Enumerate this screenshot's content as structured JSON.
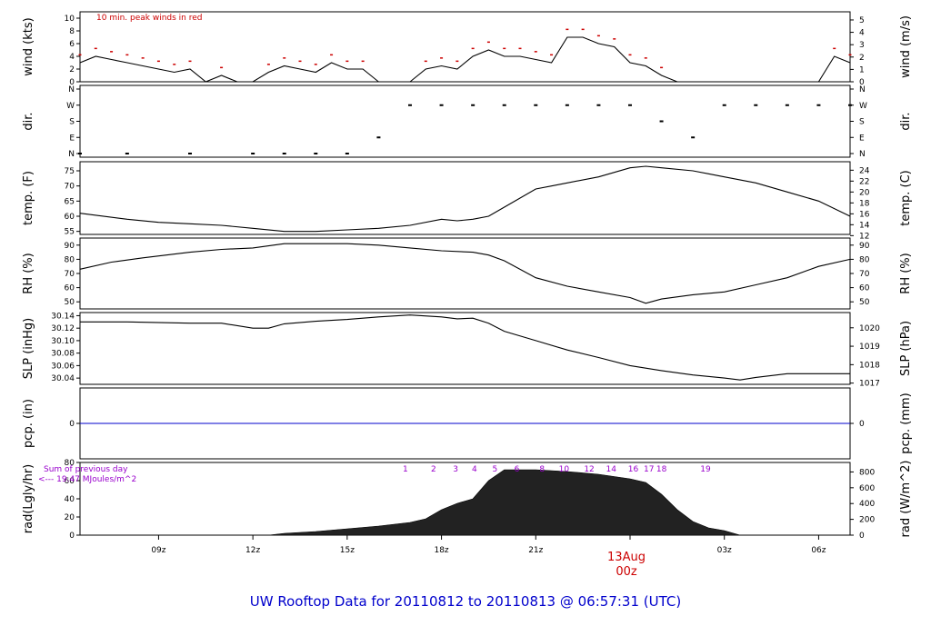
{
  "title": "UW Rooftop Data for 20110812  to  20110813 @ 06:57:31  (UTC)",
  "x_ticks": [
    "09z",
    "12z",
    "15z",
    "18z",
    "21z",
    "",
    "03z",
    "06z"
  ],
  "date_marker": {
    "date": "13Aug",
    "hour": "00z"
  },
  "panels": [
    {
      "id": "wind",
      "left_label": "wind (kts)",
      "right_label": "wind (m/s)",
      "left_ticks": [
        "0",
        "2",
        "4",
        "6",
        "8",
        "10"
      ],
      "right_ticks": [
        "0",
        "1",
        "2",
        "3",
        "4",
        "5"
      ],
      "annotation": "10 min. peak winds in red"
    },
    {
      "id": "dir",
      "left_label": "dir.",
      "right_label": "dir.",
      "left_ticks": [
        "N",
        "E",
        "S",
        "W",
        "N"
      ],
      "right_ticks": [
        "N",
        "E",
        "S",
        "W",
        "N"
      ]
    },
    {
      "id": "temp",
      "left_label": "temp. (F)",
      "right_label": "temp. (C)",
      "left_ticks": [
        "55",
        "60",
        "65",
        "70",
        "75"
      ],
      "right_ticks": [
        "12",
        "14",
        "16",
        "18",
        "20",
        "22",
        "24"
      ]
    },
    {
      "id": "rh",
      "left_label": "RH (%)",
      "right_label": "RH (%)",
      "left_ticks": [
        "50",
        "60",
        "70",
        "80",
        "90"
      ],
      "right_ticks": [
        "50",
        "60",
        "70",
        "80",
        "90"
      ]
    },
    {
      "id": "slp",
      "left_label": "SLP (inHg)",
      "right_label": "SLP (hPa)",
      "left_ticks": [
        "30.04",
        "30.06",
        "30.08",
        "30.10",
        "30.12",
        "30.14"
      ],
      "right_ticks": [
        "1017",
        "1018",
        "1019",
        "1020"
      ]
    },
    {
      "id": "pcp",
      "left_label": "pcp. (in)",
      "right_label": "pcp. (mm)",
      "left_ticks": [
        "0"
      ],
      "right_ticks": [
        "0"
      ]
    },
    {
      "id": "rad",
      "left_label": "rad(Lgly/hr)",
      "right_label": "rad (W/m^2)",
      "left_ticks": [
        "0",
        "20",
        "40",
        "60",
        "80"
      ],
      "right_ticks": [
        "0",
        "200",
        "400",
        "600",
        "800"
      ],
      "annotation_1": "Sum of previous day",
      "annotation_2": "<--- 19.47 MJoules/m^2",
      "hour_markers": [
        "1",
        "2",
        "3",
        "4",
        "5",
        "6",
        "8",
        "10",
        "12",
        "14",
        "16",
        "17",
        "18",
        "19"
      ]
    }
  ],
  "chart_data": [
    {
      "type": "line",
      "id": "wind",
      "ylabel": "wind (kts)",
      "ylim": [
        0,
        11
      ],
      "x_hours": [
        6.5,
        7,
        7.5,
        8,
        8.5,
        9,
        9.5,
        10,
        10.5,
        11,
        11.5,
        12,
        12.5,
        13,
        13.5,
        14,
        14.5,
        15,
        15.5,
        16,
        16.5,
        17,
        17.5,
        18,
        18.5,
        19,
        19.5,
        20,
        20.5,
        21,
        21.5,
        22,
        22.5,
        23,
        23.5,
        24,
        24.5,
        25,
        25.5,
        26,
        26.5,
        27,
        27.5,
        28,
        28.5,
        29,
        29.5,
        30,
        30.5,
        31
      ],
      "y": [
        3,
        4,
        3.5,
        3,
        2.5,
        2,
        1.5,
        2,
        0,
        1,
        0,
        0,
        1.5,
        2.5,
        2,
        1.5,
        3,
        2,
        2,
        0,
        0,
        0,
        2,
        2.5,
        2,
        4,
        5,
        4,
        4,
        3.5,
        3,
        7,
        7,
        6,
        5.5,
        3,
        2.5,
        1,
        0,
        0,
        0,
        0,
        0,
        0,
        0,
        0,
        0,
        0,
        4,
        3
      ]
    },
    {
      "type": "scatter",
      "id": "dir",
      "ylim": [
        "N",
        "N"
      ],
      "x_hours": [
        6.5,
        8,
        10,
        12,
        13,
        14,
        15,
        16,
        17,
        18,
        19,
        20,
        21,
        22,
        23,
        24,
        25,
        26,
        27,
        28,
        29,
        30,
        31
      ],
      "y": [
        "N",
        "N",
        "N",
        "N",
        "N",
        "N",
        "N",
        "E",
        "W",
        "W",
        "W",
        "W",
        "W",
        "W",
        "W",
        "W",
        "S",
        "E",
        "W",
        "W",
        "W",
        "W",
        "W"
      ]
    },
    {
      "type": "line",
      "id": "temp",
      "ylabel": "temp. (F)",
      "ylim": [
        54,
        78
      ],
      "x_hours": [
        6.5,
        8,
        9,
        10,
        11,
        12,
        13,
        14,
        15,
        16,
        17,
        18,
        18.5,
        19,
        19.5,
        20,
        21,
        21.5,
        22,
        23,
        24,
        24.5,
        25,
        26,
        26.5,
        27,
        28,
        29,
        30,
        31
      ],
      "y": [
        61,
        59,
        58,
        57.5,
        57,
        56,
        55,
        55,
        55.5,
        56,
        57,
        59,
        58.5,
        59,
        60,
        63,
        69,
        70,
        71,
        73,
        76,
        76.5,
        76,
        75,
        74,
        73,
        71,
        68,
        65,
        60
      ]
    },
    {
      "type": "line",
      "id": "rh",
      "ylabel": "RH (%)",
      "ylim": [
        45,
        95
      ],
      "x_hours": [
        6.5,
        7.5,
        8.5,
        10,
        11,
        12,
        13,
        14,
        15,
        16,
        17,
        18,
        19,
        19.5,
        20,
        21,
        22,
        23,
        24,
        24.5,
        25,
        26,
        27,
        28,
        29,
        30,
        31
      ],
      "y": [
        73,
        78,
        81,
        85,
        87,
        88,
        91,
        91,
        91,
        90,
        88,
        86,
        85,
        83,
        79,
        67,
        61,
        57,
        53,
        49,
        52,
        55,
        57,
        62,
        67,
        75,
        80
      ]
    },
    {
      "type": "line",
      "id": "slp",
      "ylabel": "SLP (inHg)",
      "ylim": [
        30.03,
        30.145
      ],
      "x_hours": [
        6.5,
        8,
        10,
        11,
        12,
        12.5,
        13,
        14,
        15,
        16,
        17,
        18,
        18.5,
        19,
        19.5,
        20,
        21,
        22,
        23,
        24,
        25,
        26,
        27,
        27.5,
        28,
        29,
        30,
        31
      ],
      "y": [
        30.13,
        30.13,
        30.128,
        30.128,
        30.12,
        30.12,
        30.127,
        30.131,
        30.134,
        30.138,
        30.141,
        30.138,
        30.135,
        30.136,
        30.128,
        30.115,
        30.1,
        30.085,
        30.073,
        30.06,
        30.052,
        30.045,
        30.04,
        30.037,
        30.041,
        30.047,
        30.047,
        30.047
      ]
    },
    {
      "type": "line",
      "id": "pcp",
      "ylabel": "pcp. (in)",
      "ylim": [
        -1,
        1
      ],
      "x_hours": [
        6.5,
        31
      ],
      "y": [
        0,
        0
      ]
    },
    {
      "type": "area",
      "id": "rad",
      "ylabel": "rad(Lgly/hr)",
      "ylim": [
        0,
        80
      ],
      "x_hours": [
        6.5,
        11,
        12.5,
        13,
        14,
        15,
        16,
        17,
        17.5,
        18,
        18.5,
        19,
        19.5,
        20,
        21,
        22,
        23,
        24,
        24.5,
        25,
        25.5,
        26,
        26.5,
        27,
        27.5,
        28,
        28.5,
        29,
        31
      ],
      "y": [
        0,
        0,
        0,
        2,
        4,
        7,
        10,
        14,
        18,
        28,
        35,
        40,
        60,
        72,
        72,
        70,
        67,
        62,
        58,
        45,
        28,
        15,
        8,
        5,
        0,
        0,
        0,
        0,
        0
      ]
    }
  ]
}
